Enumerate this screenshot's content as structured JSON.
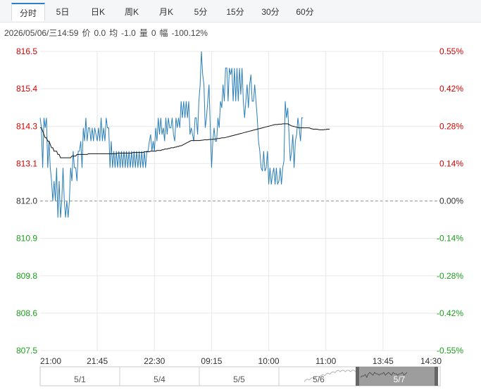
{
  "tabs": [
    {
      "label": "分时",
      "active": true
    },
    {
      "label": "5日",
      "active": false
    },
    {
      "label": "日K",
      "active": false
    },
    {
      "label": "周K",
      "active": false
    },
    {
      "label": "月K",
      "active": false
    },
    {
      "label": "5分",
      "active": false
    },
    {
      "label": "15分",
      "active": false
    },
    {
      "label": "30分",
      "active": false
    },
    {
      "label": "60分",
      "active": false
    }
  ],
  "info": {
    "datetime": "2026/05/06/三14:59",
    "price_label": "价",
    "price_value": "0.0",
    "avg_label": "均",
    "avg_value": "-1.0",
    "volume_label": "量",
    "volume_value": "0",
    "change_label": "幅",
    "change_value": "-100.12%"
  },
  "colors": {
    "price_line": "#2a7fb8",
    "avg_line": "#111111",
    "up": "#d40000",
    "down": "#1b9e1b",
    "flat": "#333333",
    "grid": "#e8e8e8",
    "navigator_shade": "#8c8c8c"
  },
  "chart_data": {
    "type": "line",
    "prev_close": 812.0,
    "ylim": [
      807.5,
      816.5
    ],
    "y_ticks_left": [
      "816.5",
      "815.4",
      "814.3",
      "813.1",
      "812.0",
      "810.9",
      "809.8",
      "808.6",
      "807.5"
    ],
    "y_ticks_right": [
      "0.55%",
      "0.42%",
      "0.28%",
      "0.14%",
      "0.00%",
      "-0.14%",
      "-0.28%",
      "-0.42%",
      "-0.55%"
    ],
    "x_ticks": [
      "21:00",
      "21:45",
      "22:30",
      "09:15",
      "10:00",
      "11:00",
      "13:45",
      "14:30"
    ],
    "x_tick_index": [
      0,
      45,
      90,
      135,
      180,
      225,
      270,
      315
    ],
    "total_slots": 315,
    "series": [
      {
        "key": "price",
        "values": [
          814.5,
          814.2,
          813.0,
          814.5,
          814.2,
          814.5,
          813.0,
          813.8,
          813.0,
          812.6,
          812.0,
          812.6,
          812.0,
          813.0,
          811.5,
          812.6,
          811.5,
          812.0,
          813.0,
          812.0,
          811.5,
          812.0,
          811.5,
          812.0,
          813.0,
          812.6,
          813.5,
          813.0,
          813.0,
          812.6,
          813.5,
          813.5,
          813.8,
          813.0,
          814.2,
          813.8,
          814.5,
          813.8,
          814.2,
          814.2,
          813.8,
          814.2,
          813.8,
          814.2,
          814.0,
          813.8,
          814.2,
          813.8,
          814.5,
          813.8,
          814.2,
          813.8,
          814.5,
          814.2,
          814.2,
          813.0,
          813.8,
          813.0,
          813.5,
          813.0,
          813.5,
          813.0,
          813.5,
          813.0,
          813.5,
          813.0,
          813.5,
          813.0,
          813.5,
          813.0,
          813.5,
          813.0,
          813.5,
          813.0,
          813.5,
          813.0,
          813.5,
          813.0,
          813.5,
          813.0,
          813.5,
          813.0,
          813.5,
          813.0,
          813.5,
          813.5,
          813.8,
          814.0,
          813.5,
          813.8,
          813.5,
          814.2,
          813.8,
          814.5,
          814.0,
          814.5,
          814.0,
          814.2,
          813.8,
          814.5,
          814.0,
          814.5,
          814.2,
          814.2,
          814.5,
          814.0,
          813.8,
          814.5,
          814.2,
          814.5,
          814.2,
          815.0,
          814.5,
          815.0,
          814.5,
          815.0,
          814.5,
          815.0,
          814.0,
          814.2,
          814.0,
          813.8,
          814.5,
          814.5,
          814.0,
          815.0,
          815.5,
          816.5,
          815.8,
          815.5,
          814.2,
          814.5,
          815.0,
          815.5,
          814.2,
          813.0,
          813.8,
          814.2,
          813.8,
          813.8,
          814.5,
          814.2,
          815.0,
          814.8,
          815.5,
          815.0,
          816.0,
          816.0,
          815.0,
          816.0,
          815.8,
          816.0,
          815.0,
          816.0,
          815.0,
          816.0,
          815.0,
          816.0,
          815.2,
          816.0,
          815.0,
          814.5,
          815.0,
          815.5,
          814.8,
          815.5,
          815.8,
          815.0,
          815.0,
          815.5,
          815.0,
          814.5,
          813.8,
          813.5,
          813.0,
          812.9,
          813.5,
          812.9,
          813.0,
          813.5,
          812.5,
          813.0,
          812.5,
          812.8,
          813.0,
          812.5,
          813.0,
          812.5,
          812.6,
          813.0,
          812.5,
          813.0,
          813.2,
          815.0,
          814.5,
          814.8,
          814.0,
          813.2,
          813.5,
          814.0,
          813.0,
          813.8,
          814.0,
          814.5,
          814.2,
          813.8,
          814.5,
          814.5
        ]
      },
      {
        "key": "avg",
        "values": [
          814.2,
          814.2,
          814.1,
          814.0,
          813.9,
          813.9,
          813.8,
          813.8,
          813.7,
          813.6,
          813.6,
          813.5,
          813.5,
          813.5,
          813.4,
          813.4,
          813.3,
          813.3,
          813.3,
          813.3,
          813.3,
          813.3,
          813.3,
          813.3,
          813.3,
          813.35,
          813.35,
          813.35,
          813.35,
          813.4,
          813.4,
          813.4,
          813.4,
          813.4,
          813.4,
          813.4,
          813.4,
          813.4,
          813.42,
          813.42,
          813.42,
          813.42,
          813.42,
          813.42,
          813.42,
          813.42,
          813.42,
          813.42,
          813.42,
          813.42,
          813.42,
          813.42,
          813.42,
          813.42,
          813.42,
          813.42,
          813.42,
          813.42,
          813.42,
          813.42,
          813.42,
          813.44,
          813.44,
          813.44,
          813.44,
          813.44,
          813.44,
          813.44,
          813.44,
          813.44,
          813.44,
          813.44,
          813.44,
          813.46,
          813.46,
          813.46,
          813.46,
          813.46,
          813.46,
          813.46,
          813.46,
          813.46,
          813.48,
          813.48,
          813.48,
          813.48,
          813.48,
          813.5,
          813.5,
          813.5,
          813.5,
          813.5,
          813.52,
          813.52,
          813.52,
          813.52,
          813.54,
          813.54,
          813.56,
          813.56,
          813.56,
          813.58,
          813.58,
          813.6,
          813.6,
          813.6,
          813.62,
          813.62,
          813.64,
          813.64,
          813.66,
          813.66,
          813.68,
          813.7,
          813.72,
          813.74,
          813.76,
          813.78,
          813.8,
          813.82,
          813.82,
          813.82,
          813.82,
          813.82,
          813.82,
          813.82,
          813.82,
          813.83,
          813.83,
          813.84,
          813.84,
          813.84,
          813.84,
          813.85,
          813.85,
          813.85,
          813.86,
          813.86,
          813.86,
          813.87,
          813.88,
          813.88,
          813.89,
          813.9,
          813.9,
          813.9,
          813.91,
          813.92,
          813.93,
          813.94,
          813.95,
          813.96,
          813.97,
          813.98,
          813.99,
          814.0,
          814.01,
          814.02,
          814.03,
          814.04,
          814.05,
          814.06,
          814.07,
          814.08,
          814.09,
          814.1,
          814.11,
          814.12,
          814.13,
          814.14,
          814.15,
          814.16,
          814.17,
          814.18,
          814.19,
          814.2,
          814.21,
          814.22,
          814.23,
          814.24,
          814.25,
          814.26,
          814.27,
          814.28,
          814.29,
          814.3,
          814.3,
          814.3,
          814.31,
          814.31,
          814.31,
          814.32,
          814.32,
          814.32,
          814.32,
          814.32,
          814.3,
          814.28,
          814.26,
          814.25,
          814.24,
          814.23,
          814.22,
          814.21,
          814.2,
          814.2,
          814.2,
          814.2,
          814.2,
          814.2,
          814.2,
          814.2,
          814.2,
          814.18,
          814.17,
          814.16,
          814.16,
          814.16,
          814.16,
          814.15,
          814.14,
          814.14,
          814.14,
          814.14,
          814.15,
          814.15,
          814.16,
          814.16,
          814.16
        ]
      }
    ],
    "navigator": {
      "labels": [
        "5/1",
        "5/4",
        "5/5",
        "5/6",
        "5/7"
      ]
    }
  }
}
